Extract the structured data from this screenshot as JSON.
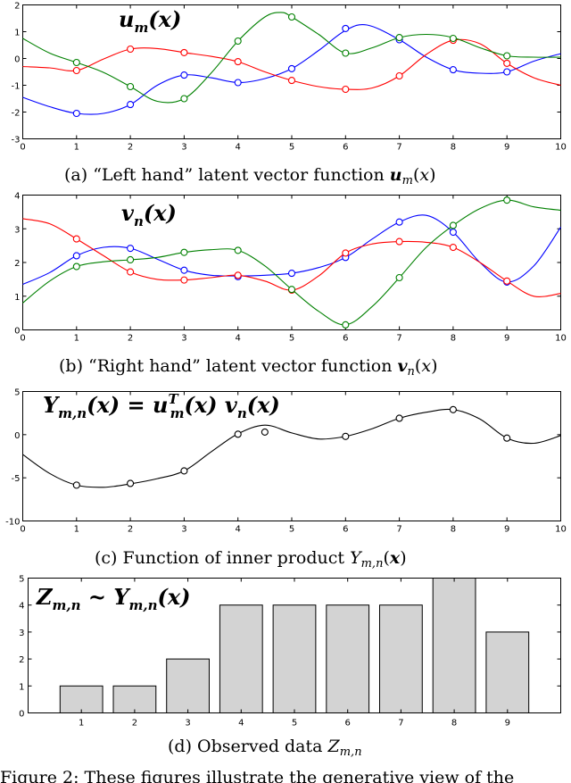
{
  "chart_data": [
    {
      "type": "line",
      "title": "u_m(x)",
      "caption": "(a) “Left hand” latent vector function u_m(x)",
      "xlim": [
        0,
        10
      ],
      "ylim": [
        -3,
        2
      ],
      "xticks": [
        0,
        1,
        2,
        3,
        4,
        5,
        6,
        7,
        8,
        9,
        10
      ],
      "yticks": [
        -3,
        -2,
        -1,
        0,
        1,
        2
      ],
      "series": [
        {
          "color": "#0000ff",
          "curve": [
            [
              0,
              -1.45
            ],
            [
              0.5,
              -1.8
            ],
            [
              1,
              -2.05
            ],
            [
              1.5,
              -2.05
            ],
            [
              2,
              -1.72
            ],
            [
              2.5,
              -1.0
            ],
            [
              3,
              -0.62
            ],
            [
              3.5,
              -0.72
            ],
            [
              4,
              -0.9
            ],
            [
              4.5,
              -0.75
            ],
            [
              5,
              -0.38
            ],
            [
              5.5,
              0.3
            ],
            [
              6,
              1.05
            ],
            [
              6.4,
              1.25
            ],
            [
              7,
              0.7
            ],
            [
              7.5,
              0.05
            ],
            [
              8,
              -0.42
            ],
            [
              8.5,
              -0.55
            ],
            [
              9,
              -0.5
            ],
            [
              9.5,
              -0.1
            ],
            [
              10,
              0.18
            ]
          ],
          "points": [
            [
              1,
              -2.05
            ],
            [
              2,
              -1.72
            ],
            [
              3,
              -0.62
            ],
            [
              4,
              -0.9
            ],
            [
              5,
              -0.38
            ],
            [
              6,
              1.12
            ],
            [
              7,
              0.7
            ],
            [
              8,
              -0.42
            ],
            [
              9,
              -0.5
            ]
          ]
        },
        {
          "color": "#ff0000",
          "curve": [
            [
              0,
              -0.3
            ],
            [
              0.5,
              -0.35
            ],
            [
              1,
              -0.45
            ],
            [
              1.5,
              -0.02
            ],
            [
              2,
              0.35
            ],
            [
              2.5,
              0.37
            ],
            [
              3,
              0.22
            ],
            [
              3.5,
              0.08
            ],
            [
              4,
              -0.12
            ],
            [
              4.5,
              -0.5
            ],
            [
              5,
              -0.82
            ],
            [
              5.5,
              -1.05
            ],
            [
              6,
              -1.15
            ],
            [
              6.5,
              -1.1
            ],
            [
              7,
              -0.65
            ],
            [
              7.5,
              0.15
            ],
            [
              8,
              0.68
            ],
            [
              8.5,
              0.55
            ],
            [
              9,
              -0.18
            ],
            [
              9.5,
              -0.72
            ],
            [
              10,
              -1.0
            ]
          ],
          "points": [
            [
              1,
              -0.45
            ],
            [
              2,
              0.35
            ],
            [
              3,
              0.22
            ],
            [
              4,
              -0.12
            ],
            [
              5,
              -0.82
            ],
            [
              6,
              -1.15
            ],
            [
              7,
              -0.65
            ],
            [
              8,
              0.68
            ],
            [
              9,
              -0.18
            ]
          ]
        },
        {
          "color": "#008000",
          "curve": [
            [
              0,
              0.75
            ],
            [
              0.5,
              0.2
            ],
            [
              1,
              -0.15
            ],
            [
              1.5,
              -0.52
            ],
            [
              2,
              -1.05
            ],
            [
              2.5,
              -1.6
            ],
            [
              3,
              -1.5
            ],
            [
              3.5,
              -0.55
            ],
            [
              4,
              0.65
            ],
            [
              4.5,
              1.55
            ],
            [
              4.8,
              1.72
            ],
            [
              5,
              1.55
            ],
            [
              5.5,
              0.9
            ],
            [
              6,
              0.2
            ],
            [
              6.5,
              0.4
            ],
            [
              7,
              0.78
            ],
            [
              7.5,
              0.9
            ],
            [
              8,
              0.78
            ],
            [
              8.5,
              0.4
            ],
            [
              9,
              0.1
            ],
            [
              9.5,
              0.05
            ],
            [
              10,
              0.05
            ]
          ],
          "points": [
            [
              1,
              -0.15
            ],
            [
              2,
              -1.05
            ],
            [
              3,
              -1.5
            ],
            [
              4,
              0.65
            ],
            [
              5,
              1.55
            ],
            [
              6,
              0.2
            ],
            [
              7,
              0.78
            ],
            [
              8,
              0.75
            ],
            [
              9,
              0.1
            ]
          ]
        }
      ]
    },
    {
      "type": "line",
      "title": "v_n(x)",
      "caption": "(b) “Right hand” latent vector function v_n(x)",
      "xlim": [
        0,
        10
      ],
      "ylim": [
        0,
        4
      ],
      "xticks": [
        0,
        1,
        2,
        3,
        4,
        5,
        6,
        7,
        8,
        9,
        10
      ],
      "yticks": [
        0,
        1,
        2,
        3,
        4
      ],
      "series": [
        {
          "color": "#0000ff",
          "curve": [
            [
              0,
              1.35
            ],
            [
              0.5,
              1.7
            ],
            [
              1,
              2.2
            ],
            [
              1.5,
              2.45
            ],
            [
              2,
              2.42
            ],
            [
              2.5,
              2.1
            ],
            [
              3,
              1.77
            ],
            [
              3.5,
              1.62
            ],
            [
              4,
              1.6
            ],
            [
              4.5,
              1.62
            ],
            [
              5,
              1.68
            ],
            [
              5.5,
              1.85
            ],
            [
              6,
              2.15
            ],
            [
              6.5,
              2.7
            ],
            [
              7,
              3.2
            ],
            [
              7.5,
              3.4
            ],
            [
              8,
              2.9
            ],
            [
              8.5,
              2.0
            ],
            [
              9,
              1.42
            ],
            [
              9.5,
              1.9
            ],
            [
              10,
              3.05
            ]
          ],
          "points": [
            [
              1,
              2.2
            ],
            [
              2,
              2.42
            ],
            [
              3,
              1.77
            ],
            [
              4,
              1.58
            ],
            [
              5,
              1.68
            ],
            [
              6,
              2.15
            ],
            [
              7,
              3.2
            ],
            [
              8,
              2.9
            ],
            [
              9,
              1.42
            ]
          ]
        },
        {
          "color": "#ff0000",
          "curve": [
            [
              0,
              3.3
            ],
            [
              0.5,
              3.15
            ],
            [
              1,
              2.7
            ],
            [
              1.5,
              2.2
            ],
            [
              2,
              1.72
            ],
            [
              2.5,
              1.5
            ],
            [
              3,
              1.48
            ],
            [
              3.5,
              1.55
            ],
            [
              4,
              1.62
            ],
            [
              4.5,
              1.45
            ],
            [
              5,
              1.18
            ],
            [
              5.5,
              1.6
            ],
            [
              6,
              2.28
            ],
            [
              6.5,
              2.55
            ],
            [
              7,
              2.62
            ],
            [
              7.5,
              2.6
            ],
            [
              8,
              2.45
            ],
            [
              8.5,
              2.0
            ],
            [
              9,
              1.45
            ],
            [
              9.5,
              1.0
            ],
            [
              10,
              1.08
            ]
          ],
          "points": [
            [
              1,
              2.7
            ],
            [
              2,
              1.72
            ],
            [
              3,
              1.48
            ],
            [
              4,
              1.62
            ],
            [
              5,
              1.18
            ],
            [
              6,
              2.28
            ],
            [
              7,
              2.62
            ],
            [
              8,
              2.45
            ],
            [
              9,
              1.45
            ]
          ]
        },
        {
          "color": "#008000",
          "curve": [
            [
              0,
              0.8
            ],
            [
              0.5,
              1.45
            ],
            [
              1,
              1.88
            ],
            [
              1.5,
              2.02
            ],
            [
              2,
              2.08
            ],
            [
              2.5,
              2.15
            ],
            [
              3,
              2.3
            ],
            [
              3.5,
              2.38
            ],
            [
              4,
              2.36
            ],
            [
              4.5,
              1.9
            ],
            [
              5,
              1.2
            ],
            [
              5.5,
              0.55
            ],
            [
              6,
              0.15
            ],
            [
              6.5,
              0.7
            ],
            [
              7,
              1.55
            ],
            [
              7.5,
              2.45
            ],
            [
              8,
              3.1
            ],
            [
              8.5,
              3.6
            ],
            [
              9,
              3.85
            ],
            [
              9.5,
              3.65
            ],
            [
              10,
              3.55
            ]
          ],
          "points": [
            [
              1,
              1.88
            ],
            [
              2,
              2.08
            ],
            [
              3,
              2.3
            ],
            [
              4,
              2.36
            ],
            [
              5,
              1.2
            ],
            [
              6,
              0.15
            ],
            [
              7,
              1.55
            ],
            [
              8,
              3.1
            ],
            [
              9,
              3.85
            ]
          ]
        }
      ]
    },
    {
      "type": "line",
      "title": "Y_m,n(x) = u_m^T(x) v_n(x)",
      "caption": "(c) Function of inner product Y_m,n(x)",
      "xlim": [
        0,
        10
      ],
      "ylim": [
        -10,
        5
      ],
      "xticks": [
        0,
        1,
        2,
        3,
        4,
        5,
        6,
        7,
        8,
        9,
        10
      ],
      "yticks": [
        -10,
        -5,
        0,
        5
      ],
      "series": [
        {
          "color": "#000000",
          "curve": [
            [
              0,
              -2.3
            ],
            [
              0.5,
              -4.5
            ],
            [
              1,
              -5.85
            ],
            [
              1.5,
              -6.1
            ],
            [
              2,
              -5.7
            ],
            [
              2.5,
              -5.1
            ],
            [
              3,
              -4.2
            ],
            [
              3.5,
              -2.0
            ],
            [
              4,
              0.1
            ],
            [
              4.5,
              1.1
            ],
            [
              5,
              0.2
            ],
            [
              5.5,
              -0.5
            ],
            [
              6,
              -0.2
            ],
            [
              6.5,
              0.7
            ],
            [
              7,
              1.9
            ],
            [
              7.5,
              2.6
            ],
            [
              8,
              2.9
            ],
            [
              8.5,
              1.8
            ],
            [
              9,
              -0.4
            ],
            [
              9.5,
              -1.0
            ],
            [
              10,
              -0.1
            ]
          ],
          "points": [
            [
              1,
              -5.85
            ],
            [
              2,
              -5.65
            ],
            [
              3,
              -4.2
            ],
            [
              4,
              0.05
            ],
            [
              4.5,
              0.3
            ],
            [
              6,
              -0.2
            ],
            [
              7,
              1.9
            ],
            [
              8,
              2.9
            ],
            [
              9,
              -0.4
            ]
          ]
        }
      ]
    },
    {
      "type": "bar",
      "title": "Z_m,n ~ Y_m,n(x)",
      "caption": "(d) Observed data Z_m,n",
      "categories": [
        "1",
        "2",
        "3",
        "4",
        "5",
        "6",
        "7",
        "8",
        "9"
      ],
      "values": [
        1,
        1,
        2,
        4,
        4,
        4,
        4,
        5,
        3
      ],
      "ylim": [
        0,
        5
      ],
      "yticks": [
        0,
        1,
        2,
        3,
        4,
        5
      ],
      "bar_color": "#d3d3d3"
    }
  ],
  "figure_footer": "Figure 2: These figures illustrate the generative view of the"
}
